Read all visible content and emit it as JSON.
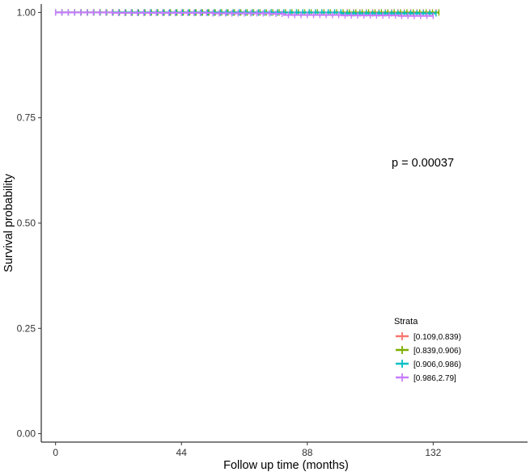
{
  "chart_data": {
    "type": "line",
    "title": "",
    "xlabel": "Follow up time (months)",
    "ylabel": "Survival probability",
    "xlim": [
      -5,
      165
    ],
    "ylim": [
      -0.02,
      1.02
    ],
    "x_ticks": [
      0,
      44,
      88,
      132
    ],
    "x_tick_labels": [
      "0",
      "44",
      "88",
      "132"
    ],
    "y_ticks": [
      0,
      0.25,
      0.5,
      0.75,
      1.0
    ],
    "y_tick_labels": [
      "0.00",
      "0.25",
      "0.50",
      "0.75",
      "1.00"
    ],
    "grid": false,
    "annotation": "p = 0.00037",
    "legend": {
      "title": "Strata",
      "placement": "bottom-right"
    },
    "series": [
      {
        "name": "[0.109,0.839)",
        "color": "#F8766D",
        "x": [
          0,
          20,
          40,
          60,
          80,
          100,
          120,
          133
        ],
        "y": [
          1.0,
          1.0,
          1.0,
          1.0,
          1.0,
          1.0,
          1.0,
          1.0
        ]
      },
      {
        "name": "[0.839,0.906)",
        "color": "#7CAE00",
        "x": [
          0,
          20,
          40,
          60,
          80,
          100,
          120,
          134
        ],
        "y": [
          1.0,
          1.0,
          1.0,
          1.0,
          1.0,
          1.0,
          1.0,
          1.0
        ]
      },
      {
        "name": "[0.906,0.986)",
        "color": "#00BFC4",
        "x": [
          0,
          20,
          40,
          60,
          80,
          100,
          120,
          133
        ],
        "y": [
          1.0,
          1.0,
          1.0,
          1.0,
          1.0,
          0.998,
          0.998,
          0.998
        ]
      },
      {
        "name": "[0.986,2.79]",
        "color": "#C77CFF",
        "x": [
          0,
          20,
          40,
          55,
          75,
          80,
          100,
          120,
          132
        ],
        "y": [
          1.0,
          0.999,
          0.999,
          0.998,
          0.997,
          0.994,
          0.993,
          0.992,
          0.992
        ]
      }
    ]
  }
}
